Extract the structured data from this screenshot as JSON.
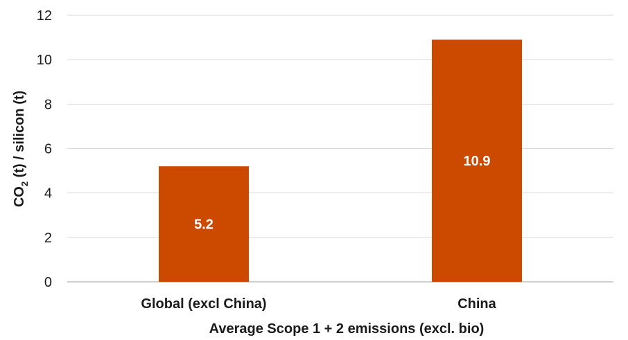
{
  "chart_data": {
    "type": "bar",
    "categories": [
      "Global (excl China)",
      "China"
    ],
    "values": [
      5.2,
      10.9
    ],
    "data_labels": [
      "5.2",
      "10.9"
    ],
    "title": "",
    "xlabel": "Average Scope 1 + 2 emissions (excl. bio)",
    "ylabel": {
      "prefix": "CO",
      "subscript": "2",
      "suffix": " (t) / silicon (t)"
    },
    "ylim": [
      0,
      12
    ],
    "yticks": [
      "0",
      "2",
      "4",
      "6",
      "8",
      "10",
      "12"
    ],
    "grid": true,
    "legend": "none",
    "bar_color": "#cc4a00"
  }
}
